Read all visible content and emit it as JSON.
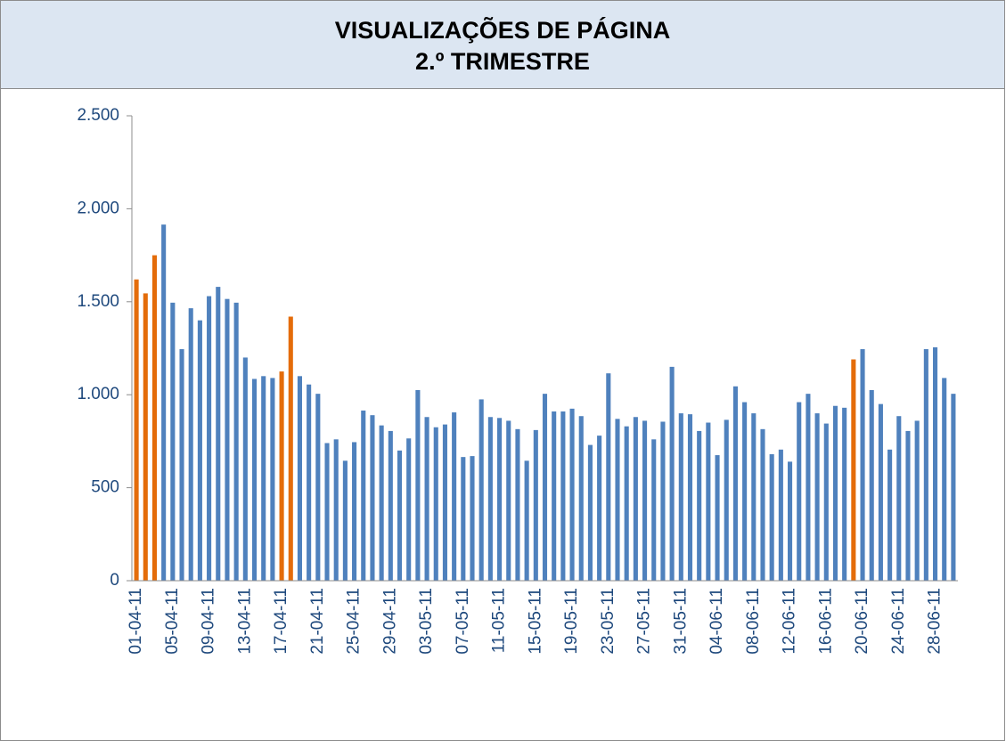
{
  "chart_data": {
    "type": "bar",
    "title": "VISUALIZAÇÕES DE PÁGINA",
    "subtitle": "2.º TRIMESTRE",
    "categories": [
      "01-04-11",
      null,
      null,
      null,
      "05-04-11",
      null,
      null,
      null,
      "09-04-11",
      null,
      null,
      null,
      "13-04-11",
      null,
      null,
      null,
      "17-04-11",
      null,
      null,
      null,
      "21-04-11",
      null,
      null,
      null,
      "25-04-11",
      null,
      null,
      null,
      "29-04-11",
      null,
      null,
      null,
      "03-05-11",
      null,
      null,
      null,
      "07-05-11",
      null,
      null,
      null,
      "11-05-11",
      null,
      null,
      null,
      "15-05-11",
      null,
      null,
      null,
      "19-05-11",
      null,
      null,
      null,
      "23-05-11",
      null,
      null,
      null,
      "27-05-11",
      null,
      null,
      null,
      "31-05-11",
      null,
      null,
      null,
      "04-06-11",
      null,
      null,
      null,
      "08-06-11",
      null,
      null,
      null,
      "12-06-11",
      null,
      null,
      null,
      "16-06-11",
      null,
      null,
      null,
      "20-06-11",
      null,
      null,
      null,
      "24-06-11",
      null,
      null,
      null,
      "28-06-11",
      null,
      null
    ],
    "values": [
      1620,
      1545,
      1750,
      1915,
      1495,
      1245,
      1465,
      1400,
      1530,
      1580,
      1515,
      1495,
      1200,
      1085,
      1100,
      1090,
      1125,
      1420,
      1100,
      1055,
      1005,
      740,
      760,
      645,
      745,
      915,
      890,
      835,
      805,
      700,
      765,
      1025,
      880,
      825,
      840,
      905,
      665,
      670,
      975,
      880,
      875,
      860,
      815,
      645,
      810,
      1005,
      910,
      910,
      925,
      885,
      730,
      780,
      1115,
      870,
      830,
      880,
      860,
      760,
      855,
      1150,
      900,
      895,
      805,
      850,
      675,
      865,
      1045,
      960,
      900,
      815,
      680,
      705,
      640,
      960,
      1005,
      900,
      845,
      940,
      930,
      1190,
      1245,
      1025,
      950,
      705,
      885,
      805,
      860,
      1245,
      1255,
      1090,
      1005
    ],
    "colors": [
      "#e46c0a",
      "#e46c0a",
      "#e46c0a",
      "#4f81bd",
      "#4f81bd",
      "#4f81bd",
      "#4f81bd",
      "#4f81bd",
      "#4f81bd",
      "#4f81bd",
      "#4f81bd",
      "#4f81bd",
      "#4f81bd",
      "#4f81bd",
      "#4f81bd",
      "#4f81bd",
      "#e46c0a",
      "#e46c0a",
      "#4f81bd",
      "#4f81bd",
      "#4f81bd",
      "#4f81bd",
      "#4f81bd",
      "#4f81bd",
      "#4f81bd",
      "#4f81bd",
      "#4f81bd",
      "#4f81bd",
      "#4f81bd",
      "#4f81bd",
      "#4f81bd",
      "#4f81bd",
      "#4f81bd",
      "#4f81bd",
      "#4f81bd",
      "#4f81bd",
      "#4f81bd",
      "#4f81bd",
      "#4f81bd",
      "#4f81bd",
      "#4f81bd",
      "#4f81bd",
      "#4f81bd",
      "#4f81bd",
      "#4f81bd",
      "#4f81bd",
      "#4f81bd",
      "#4f81bd",
      "#4f81bd",
      "#4f81bd",
      "#4f81bd",
      "#4f81bd",
      "#4f81bd",
      "#4f81bd",
      "#4f81bd",
      "#4f81bd",
      "#4f81bd",
      "#4f81bd",
      "#4f81bd",
      "#4f81bd",
      "#4f81bd",
      "#4f81bd",
      "#4f81bd",
      "#4f81bd",
      "#4f81bd",
      "#4f81bd",
      "#4f81bd",
      "#4f81bd",
      "#4f81bd",
      "#4f81bd",
      "#4f81bd",
      "#4f81bd",
      "#4f81bd",
      "#4f81bd",
      "#4f81bd",
      "#4f81bd",
      "#4f81bd",
      "#4f81bd",
      "#4f81bd",
      "#e46c0a",
      "#4f81bd",
      "#4f81bd",
      "#4f81bd",
      "#4f81bd",
      "#4f81bd",
      "#4f81bd",
      "#4f81bd",
      "#4f81bd",
      "#4f81bd",
      "#4f81bd",
      "#4f81bd"
    ],
    "ylim": [
      0,
      2500
    ],
    "yticks": [
      0,
      500,
      {
        "value": 1000,
        "label": "1.000"
      },
      {
        "value": 1500,
        "label": "1.500"
      },
      {
        "value": 2000,
        "label": "2.000"
      },
      {
        "value": 2500,
        "label": "2.500"
      }
    ],
    "grid": false
  }
}
